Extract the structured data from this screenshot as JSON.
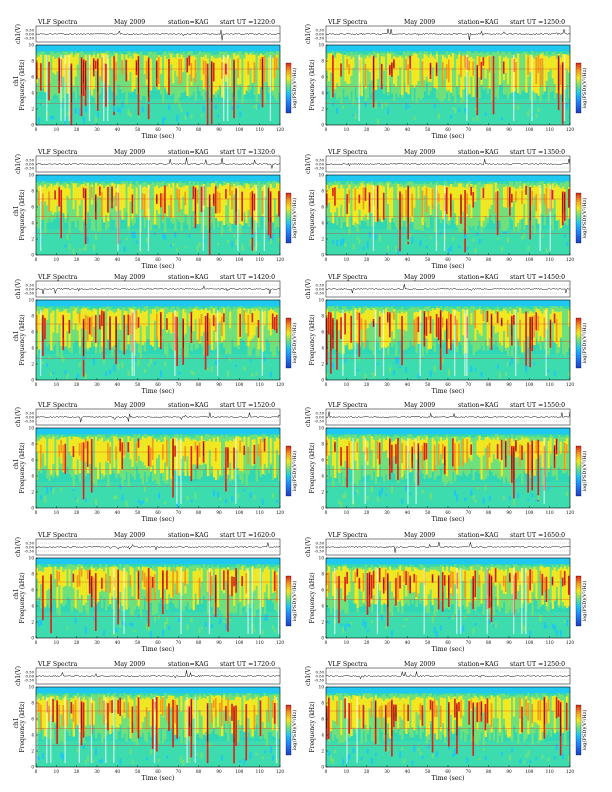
{
  "panel_common": {
    "title_left": "VLF Spectra",
    "date": "May 2009",
    "station": "station=KAG",
    "start_prefix": "start UT =",
    "wave_ylabel": "ch1(V)",
    "wave_ticks": [
      "0.30",
      "0.00",
      "-0.30"
    ],
    "spec_ylabel": "Frequency (kHz)",
    "spec_ylabel_extra": "ch1",
    "y_ticks": [
      "0",
      "2",
      "4",
      "6",
      "8",
      "10"
    ],
    "x_ticks": [
      "0",
      "10",
      "20",
      "30",
      "40",
      "50",
      "60",
      "70",
      "80",
      "90",
      "100",
      "110",
      "120"
    ],
    "xlabel": "Time (sec)",
    "cbar_label": "log(PSD)(V²/Hz)"
  },
  "colors": {
    "noise_floor": "#1ec8f0",
    "background": "#2fd7b5",
    "green": "#6fe07a",
    "yellow": "#f5e81f",
    "orange": "#f59a1c",
    "red": "#e0201a",
    "dark_red": "#8a0c0c",
    "white": "#ffffff",
    "blue": "#1a3ec8"
  },
  "chart_data": [
    {
      "type": "heatmap",
      "start_ut": "1220:0",
      "xlim": [
        0,
        120
      ],
      "ylim": [
        0,
        10
      ],
      "channel_label": true
    },
    {
      "type": "heatmap",
      "start_ut": "1250:0",
      "xlim": [
        0,
        120
      ],
      "ylim": [
        0,
        10
      ],
      "channel_label": false
    },
    {
      "type": "heatmap",
      "start_ut": "1320:0",
      "xlim": [
        0,
        120
      ],
      "ylim": [
        0,
        10
      ],
      "channel_label": true
    },
    {
      "type": "heatmap",
      "start_ut": "1350:0",
      "xlim": [
        0,
        120
      ],
      "ylim": [
        0,
        10
      ],
      "channel_label": false
    },
    {
      "type": "heatmap",
      "start_ut": "1420:0",
      "xlim": [
        0,
        120
      ],
      "ylim": [
        0,
        10
      ],
      "channel_label": true
    },
    {
      "type": "heatmap",
      "start_ut": "1450:0",
      "xlim": [
        0,
        120
      ],
      "ylim": [
        0,
        10
      ],
      "channel_label": false
    },
    {
      "type": "heatmap",
      "start_ut": "1520:0",
      "xlim": [
        0,
        120
      ],
      "ylim": [
        0,
        10
      ],
      "channel_label": true
    },
    {
      "type": "heatmap",
      "start_ut": "1550:0",
      "xlim": [
        0,
        120
      ],
      "ylim": [
        0,
        10
      ],
      "channel_label": false
    },
    {
      "type": "heatmap",
      "start_ut": "1620:0",
      "xlim": [
        0,
        120
      ],
      "ylim": [
        0,
        10
      ],
      "channel_label": true
    },
    {
      "type": "heatmap",
      "start_ut": "1650:0",
      "xlim": [
        0,
        120
      ],
      "ylim": [
        0,
        10
      ],
      "channel_label": false
    },
    {
      "type": "heatmap",
      "start_ut": "1720:0",
      "xlim": [
        0,
        120
      ],
      "ylim": [
        0,
        10
      ],
      "channel_label": true
    },
    {
      "type": "heatmap",
      "start_ut": "1250:0",
      "xlim": [
        0,
        120
      ],
      "ylim": [
        0,
        10
      ],
      "channel_label": false
    }
  ]
}
